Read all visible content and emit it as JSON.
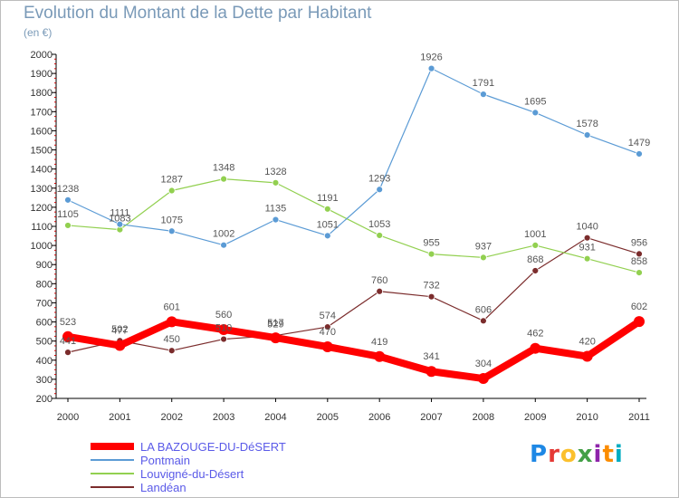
{
  "header": {
    "title": "Evolution du Montant de la Dette par Habitant",
    "unit": "(en €)"
  },
  "logo": {
    "text": "Proxiti",
    "colors": [
      "#1e88e5",
      "#e53935",
      "#fbc02d",
      "#43a047",
      "#8e24aa",
      "#fb8c00",
      "#00acc1"
    ]
  },
  "chart_data": {
    "type": "line",
    "title": "Evolution du Montant de la Dette par Habitant",
    "ylabel": "(en €)",
    "xlabel": "",
    "x": [
      "2000",
      "2001",
      "2002",
      "2003",
      "2004",
      "2005",
      "2006",
      "2007",
      "2008",
      "2009",
      "2010",
      "2011"
    ],
    "ylim": [
      200,
      2000
    ],
    "yticks": [
      200,
      300,
      400,
      500,
      600,
      700,
      800,
      900,
      1000,
      1100,
      1200,
      1300,
      1400,
      1500,
      1600,
      1700,
      1800,
      1900,
      2000
    ],
    "grid": false,
    "legend_position": "bottom-left",
    "series": [
      {
        "name": "LA BAZOUGE-DU-DéSERT",
        "color": "#ff0000",
        "values": [
          523,
          477,
          601,
          560,
          517,
          470,
          419,
          341,
          304,
          462,
          420,
          602
        ]
      },
      {
        "name": "Pontmain",
        "color": "#5b9bd5",
        "values": [
          1238,
          1111,
          1075,
          1002,
          1135,
          1051,
          1293,
          1926,
          1791,
          1695,
          1578,
          1479
        ]
      },
      {
        "name": "Louvigné-du-Désert",
        "color": "#92d050",
        "values": [
          1105,
          1083,
          1287,
          1348,
          1328,
          1191,
          1053,
          955,
          937,
          1001,
          931,
          858
        ]
      },
      {
        "name": "Landéan",
        "color": "#7b2c2c",
        "values": [
          441,
          502,
          450,
          510,
          529,
          574,
          760,
          732,
          606,
          868,
          1040,
          956
        ]
      }
    ]
  }
}
